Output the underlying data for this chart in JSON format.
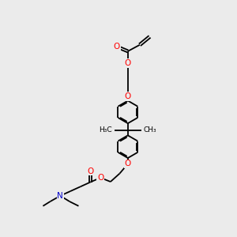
{
  "background_color": "#ebebeb",
  "bond_color": "#000000",
  "O_color": "#ff0000",
  "N_color": "#0000cc",
  "line_width": 1.3,
  "figsize": [
    3.0,
    3.0
  ],
  "dpi": 100,
  "xlim": [
    0,
    10
  ],
  "ylim": [
    0,
    10
  ],
  "font_size": 7.5,
  "small_font_size": 6.5
}
